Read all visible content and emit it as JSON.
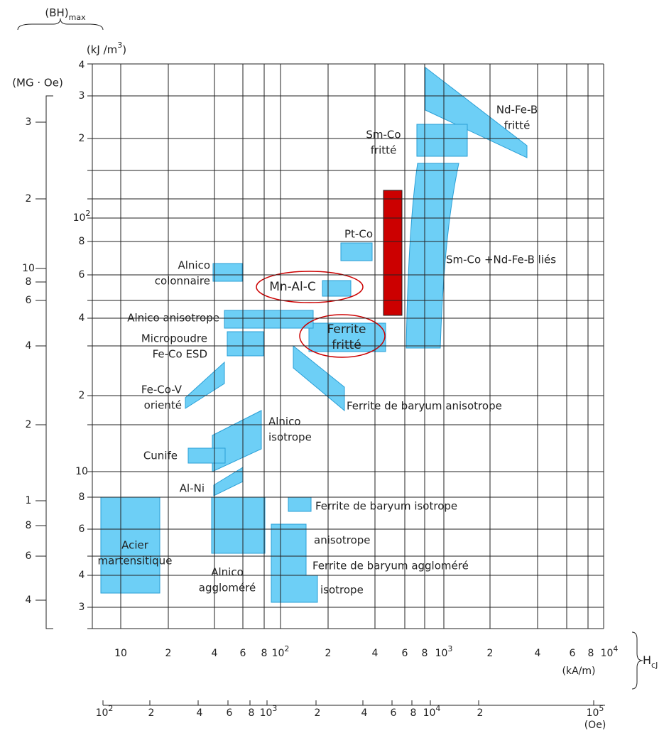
{
  "axes": {
    "bh_max": {
      "base": "(BH)",
      "sub": "max"
    },
    "kj_unit": {
      "base": "(kJ /m",
      "sup": "3",
      "end": ")"
    },
    "mgoe_unit": "(MG · Oe)",
    "kj_ticks": [
      "4",
      "3",
      "2",
      {
        "base": "10",
        "sup": "2"
      },
      "8",
      "6",
      "4",
      "2",
      "10",
      "8",
      "6",
      "4",
      "3"
    ],
    "mgoe_ticks": [
      "3",
      "2",
      "10",
      "8",
      "6",
      "4",
      "2",
      "1",
      "8",
      "6",
      "4"
    ],
    "ka_ticks": [
      "10",
      "2",
      "4",
      "6",
      "8",
      {
        "base": "10",
        "sup": "2"
      },
      "2",
      "4",
      "6",
      "8",
      {
        "base": "10",
        "sup": "3"
      },
      "2",
      "4",
      "6",
      "8",
      {
        "base": "10",
        "sup": "4"
      }
    ],
    "ka_unit": "(kA/m)",
    "hcj": {
      "base": "H",
      "sub": "cJ"
    },
    "oe_ticks": [
      {
        "base": "10",
        "sup": "2"
      },
      "2",
      "4",
      "6",
      "8",
      {
        "base": "10",
        "sup": "3"
      },
      "2",
      "4",
      "6",
      "8",
      {
        "base": "10",
        "sup": "4"
      },
      "2",
      {
        "base": "10",
        "sup": "5"
      }
    ],
    "oe_unit": "(Oe)"
  },
  "materials": [
    {
      "lines": [
        "Nd-Fe-B",
        "fritté"
      ]
    },
    {
      "lines": [
        "Sm-Co",
        "fritté"
      ]
    },
    {
      "lines": [
        "Sm-Co +Nd-Fe-B liés"
      ]
    },
    {
      "lines": [
        "Pt-Co"
      ]
    },
    {
      "lines": [
        "Mn-Al-C"
      ]
    },
    {
      "lines": [
        "Ferrite",
        "fritté"
      ]
    },
    {
      "lines": [
        "Alnico",
        "colonnaire"
      ]
    },
    {
      "lines": [
        "Alnico anisotrope"
      ]
    },
    {
      "lines": [
        "Micropoudre",
        "Fe-Co ESD"
      ]
    },
    {
      "lines": [
        "Fe-Co-V",
        "orienté"
      ]
    },
    {
      "lines": [
        "Ferrite de baryum anisotrope"
      ]
    },
    {
      "lines": [
        "Alnico",
        "isotrope"
      ]
    },
    {
      "lines": [
        "Cunife"
      ]
    },
    {
      "lines": [
        "Al-Ni"
      ]
    },
    {
      "lines": [
        "Ferrite de baryum isotrope"
      ]
    },
    {
      "lines": [
        "Acier",
        "martensitique"
      ]
    },
    {
      "lines": [
        "Alnico",
        "aggloméré"
      ]
    },
    {
      "lines": [
        "anisotrope"
      ]
    },
    {
      "lines": [
        "Ferrite de baryum aggloméré"
      ]
    },
    {
      "lines": [
        "isotrope"
      ]
    }
  ]
}
